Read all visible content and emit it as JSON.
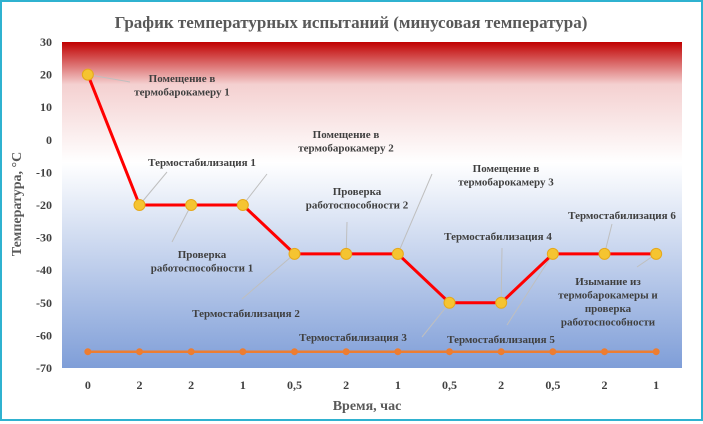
{
  "chart_data": {
    "type": "line",
    "title": "График температурных испытаний (минусовая температура)",
    "xlabel": "Время, час",
    "ylabel": "Температура, °С",
    "categories": [
      "0",
      "2",
      "2",
      "1",
      "0,5",
      "2",
      "1",
      "0,5",
      "2",
      "0,5",
      "2",
      "1"
    ],
    "ylim": [
      -70,
      30
    ],
    "yticks": [
      30,
      20,
      10,
      0,
      -10,
      -20,
      -30,
      -40,
      -50,
      -60,
      -70
    ],
    "grid": false,
    "legend": "none",
    "series": [
      {
        "values": [
          20,
          -20,
          -20,
          -20,
          -35,
          -35,
          -35,
          -50,
          -50,
          -35,
          -35,
          -35
        ],
        "color": "#ff0000",
        "marker_color": "#f5c431"
      },
      {
        "values": [
          -65,
          -65,
          -65,
          -65,
          -65,
          -65,
          -65,
          -65,
          -65,
          -65,
          -65,
          -65
        ],
        "color": "#ed7d31",
        "marker_color": "#ed7d31"
      }
    ],
    "annotations": [
      {
        "point": 0,
        "lines": [
          "Помещение в",
          "термобарокамеру 1"
        ]
      },
      {
        "point": 1,
        "lines": [
          "Термостабилизация 1"
        ]
      },
      {
        "point": 2,
        "lines": [
          "Проверка",
          "работоспособности 1"
        ]
      },
      {
        "point": 3,
        "lines": [
          "Помещение в",
          "термобарокамеру 2"
        ]
      },
      {
        "point": 4,
        "lines": [
          "Термостабилизация 2"
        ]
      },
      {
        "point": 5,
        "lines": [
          "Проверка",
          "работоспособности 2"
        ]
      },
      {
        "point": 6,
        "lines": [
          "Помещение в",
          "термобарокамеру 3"
        ]
      },
      {
        "point": 7,
        "lines": [
          "Термостабилизация 3"
        ]
      },
      {
        "point": 8,
        "lines": [
          "Термостабилизация 4"
        ]
      },
      {
        "point": 9,
        "lines": [
          "Термостабилизация 5"
        ]
      },
      {
        "point": 10,
        "lines": [
          "Термостабилизация 6"
        ]
      },
      {
        "point": 11,
        "lines": [
          "Изымание из",
          "термобарокамеры  и",
          "проверка",
          "работоспособности"
        ]
      }
    ],
    "background_gradient": [
      "#c00000",
      "#f4d0d0",
      "#ffffff",
      "#7f9ed8"
    ]
  }
}
